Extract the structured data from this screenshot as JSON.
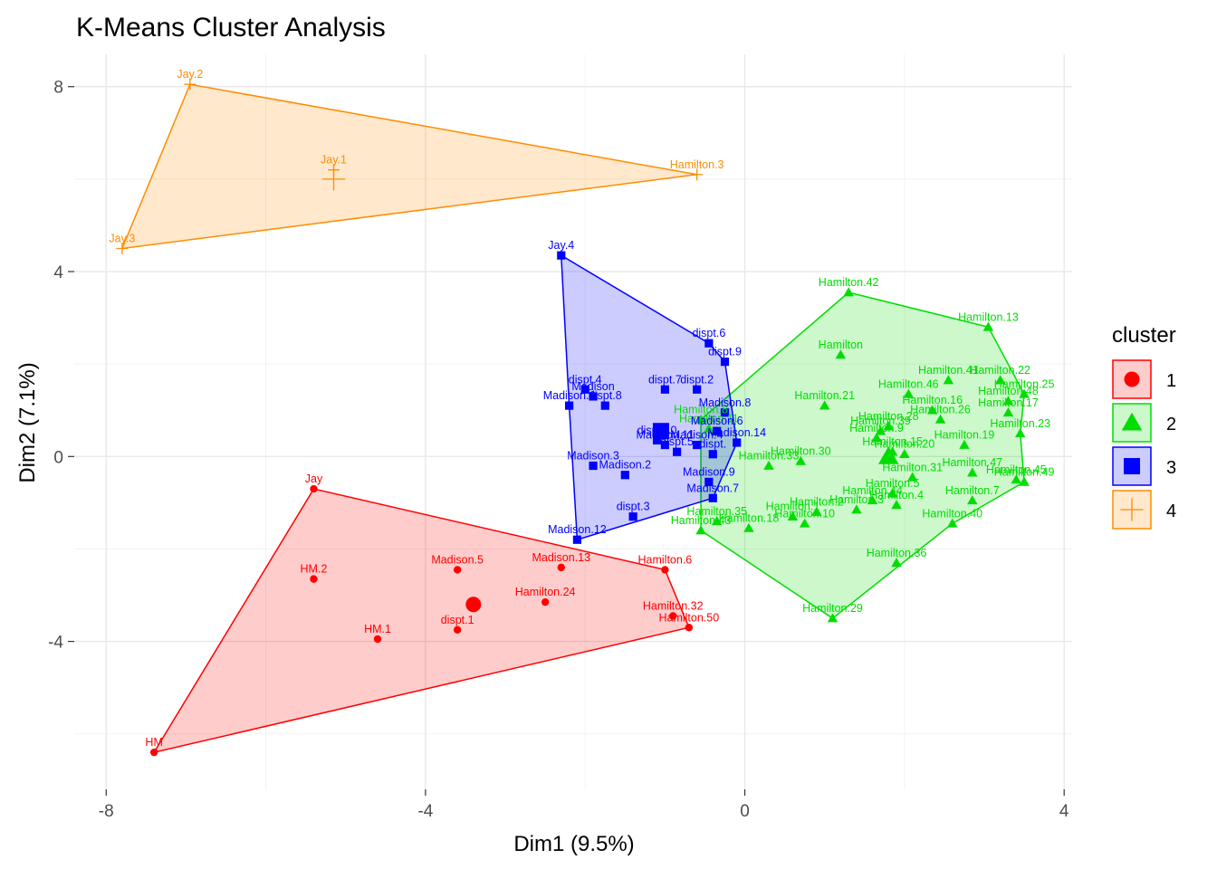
{
  "chart_data": {
    "type": "scatter",
    "title": "K-Means Cluster Analysis",
    "xlabel": "Dim1 (9.5%)",
    "ylabel": "Dim2 (7.1%)",
    "xlim": [
      -8.4,
      4.1
    ],
    "ylim": [
      -7.2,
      8.7
    ],
    "xticks": [
      -8,
      -4,
      0,
      4
    ],
    "yticks": [
      -4,
      0,
      4,
      8
    ],
    "xtick_labels": [
      "-8",
      "-4",
      "0",
      "4"
    ],
    "ytick_labels": [
      "-4",
      "0",
      "4",
      "8"
    ],
    "grid": true,
    "legend": {
      "title": "cluster",
      "position": "right"
    },
    "clusters": [
      {
        "name": "1",
        "color": "#ff0000",
        "shape": "circle",
        "center": [
          -3.4,
          -3.2
        ],
        "points": [
          {
            "label": "Jay",
            "x": -5.4,
            "y": -0.7
          },
          {
            "label": "HM.2",
            "x": -5.4,
            "y": -2.65
          },
          {
            "label": "HM.1",
            "x": -4.6,
            "y": -3.95
          },
          {
            "label": "HM",
            "x": -7.4,
            "y": -6.4
          },
          {
            "label": "Madison.5",
            "x": -3.6,
            "y": -2.45
          },
          {
            "label": "dispt.1",
            "x": -3.6,
            "y": -3.75
          },
          {
            "label": "Madison.13",
            "x": -2.3,
            "y": -2.4
          },
          {
            "label": "Hamilton.24",
            "x": -2.5,
            "y": -3.15
          },
          {
            "label": "Hamilton.6",
            "x": -1.0,
            "y": -2.45
          },
          {
            "label": "Hamilton.32",
            "x": -0.9,
            "y": -3.45
          },
          {
            "label": "Hamilton.50",
            "x": -0.7,
            "y": -3.7
          }
        ],
        "hull": [
          "Jay",
          "Hamilton.6",
          "Hamilton.50",
          "HM"
        ]
      },
      {
        "name": "2",
        "color": "#00dd00",
        "shape": "triangle",
        "center": [
          1.8,
          0.0
        ],
        "points": [
          {
            "label": "Hamilton.42",
            "x": 1.3,
            "y": 3.55
          },
          {
            "label": "Hamilton.13",
            "x": 3.05,
            "y": 2.8
          },
          {
            "label": "Hamilton",
            "x": 1.2,
            "y": 2.2
          },
          {
            "label": "Hamilton.41",
            "x": 2.55,
            "y": 1.65
          },
          {
            "label": "Hamilton.22",
            "x": 3.2,
            "y": 1.65
          },
          {
            "label": "Hamilton.46",
            "x": 2.05,
            "y": 1.35
          },
          {
            "label": "Hamilton.25",
            "x": 3.5,
            "y": 1.35
          },
          {
            "label": "Hamilton.21",
            "x": 1.0,
            "y": 1.1
          },
          {
            "label": "Hamilton.16",
            "x": 2.35,
            "y": 1.0
          },
          {
            "label": "Hamilton.48",
            "x": 3.3,
            "y": 1.2
          },
          {
            "label": "Hamilton.26",
            "x": 2.45,
            "y": 0.8
          },
          {
            "label": "Hamilton.17",
            "x": 3.3,
            "y": 0.95
          },
          {
            "label": "Hamilton.28",
            "x": 1.8,
            "y": 0.65
          },
          {
            "label": "Hamilton.39",
            "x": 1.7,
            "y": 0.55
          },
          {
            "label": "Hamilton.23",
            "x": 3.45,
            "y": 0.5
          },
          {
            "label": "Hamilton.19",
            "x": 2.75,
            "y": 0.25
          },
          {
            "label": "Hamilton.9",
            "x": 1.65,
            "y": 0.4
          },
          {
            "label": "Hamilton.15",
            "x": 1.85,
            "y": 0.1
          },
          {
            "label": "Hamilton.20",
            "x": 2.0,
            "y": 0.05
          },
          {
            "label": "Hamilton.30",
            "x": 0.7,
            "y": -0.1
          },
          {
            "label": "Hamilton.33",
            "x": 0.3,
            "y": -0.2
          },
          {
            "label": "Hamilton.47",
            "x": 2.85,
            "y": -0.35
          },
          {
            "label": "Hamilton.45",
            "x": 3.4,
            "y": -0.5
          },
          {
            "label": "Hamilton.49",
            "x": 3.5,
            "y": -0.55
          },
          {
            "label": "Hamilton.31",
            "x": 2.1,
            "y": -0.45
          },
          {
            "label": "Hamilton.5",
            "x": 1.85,
            "y": -0.8
          },
          {
            "label": "Hamilton.7",
            "x": 2.85,
            "y": -0.95
          },
          {
            "label": "Hamilton.4",
            "x": 1.9,
            "y": -1.05
          },
          {
            "label": "Hamilton.40",
            "x": 2.6,
            "y": -1.45
          },
          {
            "label": "Hamilton.44",
            "x": 1.6,
            "y": -0.95
          },
          {
            "label": "Hamilton.3",
            "x": 1.4,
            "y": -1.15
          },
          {
            "label": "Hamilton.2",
            "x": 0.9,
            "y": -1.2
          },
          {
            "label": "Hamilton.1",
            "x": 0.6,
            "y": -1.3
          },
          {
            "label": "Hamilton.10",
            "x": 0.75,
            "y": -1.45
          },
          {
            "label": "Hamilton.35",
            "x": -0.35,
            "y": -1.4
          },
          {
            "label": "Hamilton.43",
            "x": -0.55,
            "y": -1.6
          },
          {
            "label": "Hamilton.18",
            "x": 0.05,
            "y": -1.55
          },
          {
            "label": "Hamilton.36",
            "x": 1.9,
            "y": -2.3
          },
          {
            "label": "Hamilton.29",
            "x": 1.1,
            "y": -3.5
          },
          {
            "label": "Hamilton.8",
            "x": -0.55,
            "y": 0.8
          },
          {
            "label": "Hamilton.11",
            "x": -0.45,
            "y": 0.6
          }
        ],
        "hull": [
          "Hamilton.42",
          "Hamilton.13",
          "Hamilton.25",
          "Hamilton.23",
          "Hamilton.49",
          "Hamilton.40",
          "Hamilton.29",
          "Hamilton.43",
          "Hamilton.8"
        ]
      },
      {
        "name": "3",
        "color": "#0000ff",
        "shape": "square",
        "center": [
          -1.05,
          0.55
        ],
        "points": [
          {
            "label": "Jay.4",
            "x": -2.3,
            "y": 4.35
          },
          {
            "label": "dispt.6",
            "x": -0.45,
            "y": 2.45
          },
          {
            "label": "dispt.9",
            "x": -0.25,
            "y": 2.05
          },
          {
            "label": "dispt.4",
            "x": -2.0,
            "y": 1.45
          },
          {
            "label": "Madison",
            "x": -1.9,
            "y": 1.3
          },
          {
            "label": "Madison.1",
            "x": -2.2,
            "y": 1.1
          },
          {
            "label": "dispt.8",
            "x": -1.75,
            "y": 1.1
          },
          {
            "label": "dispt.7",
            "x": -1.0,
            "y": 1.45
          },
          {
            "label": "dispt.2",
            "x": -0.6,
            "y": 1.45
          },
          {
            "label": "Madison.8",
            "x": -0.25,
            "y": 0.95
          },
          {
            "label": "Madison.6",
            "x": -0.35,
            "y": 0.55
          },
          {
            "label": "Madison.14",
            "x": -0.1,
            "y": 0.3
          },
          {
            "label": "dispt.10",
            "x": -1.1,
            "y": 0.35
          },
          {
            "label": "Madison.4",
            "x": -0.6,
            "y": 0.25
          },
          {
            "label": "dispt.5",
            "x": -0.85,
            "y": 0.1
          },
          {
            "label": "dispt.",
            "x": -0.4,
            "y": 0.05
          },
          {
            "label": "Madison.11",
            "x": -1.0,
            "y": 0.25
          },
          {
            "label": "Madison.3",
            "x": -1.9,
            "y": -0.2
          },
          {
            "label": "Madison.2",
            "x": -1.5,
            "y": -0.4
          },
          {
            "label": "Madison.9",
            "x": -0.45,
            "y": -0.55
          },
          {
            "label": "Madison.7",
            "x": -0.4,
            "y": -0.9
          },
          {
            "label": "dispt.3",
            "x": -1.4,
            "y": -1.3
          },
          {
            "label": "Madison.12",
            "x": -2.1,
            "y": -1.8
          }
        ],
        "hull": [
          "Jay.4",
          "dispt.6",
          "dispt.9",
          "Madison.14",
          "Madison.7",
          "Madison.12",
          "Madison.1"
        ]
      },
      {
        "name": "4",
        "color": "#ff8c00",
        "shape": "cross",
        "center": [
          -5.15,
          6.0
        ],
        "points": [
          {
            "label": "Jay.2",
            "x": -6.95,
            "y": 8.05
          },
          {
            "label": "Jay.1",
            "x": -5.15,
            "y": 6.2
          },
          {
            "label": "Hamilton.3",
            "x": -0.6,
            "y": 6.1
          },
          {
            "label": "Jay.3",
            "x": -7.8,
            "y": 4.5
          }
        ],
        "hull": [
          "Jay.2",
          "Hamilton.3",
          "Jay.3"
        ]
      }
    ]
  }
}
